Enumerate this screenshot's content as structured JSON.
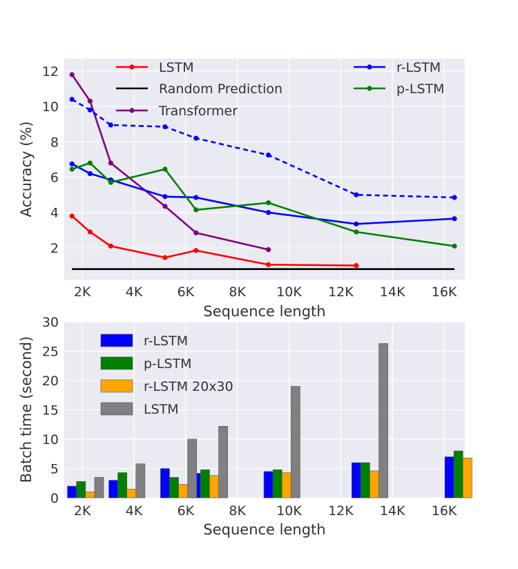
{
  "chart_data": [
    {
      "type": "line",
      "xlabel": "Sequence length",
      "ylabel": "Accuracy (%)",
      "xlim": [
        1300,
        16800
      ],
      "ylim": [
        0.2,
        12.7
      ],
      "xticks": [
        {
          "value": 2000,
          "label": "2K"
        },
        {
          "value": 4000,
          "label": "4K"
        },
        {
          "value": 6000,
          "label": "6K"
        },
        {
          "value": 8000,
          "label": "8K"
        },
        {
          "value": 10000,
          "label": "10K"
        },
        {
          "value": 12000,
          "label": "12K"
        },
        {
          "value": 14000,
          "label": "14K"
        },
        {
          "value": 16000,
          "label": "16K"
        }
      ],
      "yticks": [
        {
          "value": 2,
          "label": "2"
        },
        {
          "value": 4,
          "label": "4"
        },
        {
          "value": 6,
          "label": "6"
        },
        {
          "value": 8,
          "label": "8"
        },
        {
          "value": 10,
          "label": "10"
        },
        {
          "value": 12,
          "label": "12"
        }
      ],
      "grid": true,
      "legend_placement": "top",
      "series": [
        {
          "name": "LSTM",
          "color": "#ff0000",
          "style": "solid",
          "marker": true,
          "x": [
            1600,
            2300,
            3100,
            5200,
            6400,
            9200,
            12600
          ],
          "y": [
            3.8,
            2.9,
            2.1,
            1.45,
            1.85,
            1.05,
            1.0
          ]
        },
        {
          "name": "Random Prediction",
          "color": "#000000",
          "style": "solid",
          "marker": false,
          "x": [
            1600,
            16400
          ],
          "y": [
            0.8,
            0.8
          ]
        },
        {
          "name": "Transformer",
          "color": "#800080",
          "style": "solid",
          "marker": true,
          "x": [
            1600,
            2300,
            3100,
            5200,
            6400,
            9200
          ],
          "y": [
            11.8,
            10.3,
            6.8,
            4.35,
            2.85,
            1.9
          ]
        },
        {
          "name": "r-LSTM",
          "color": "#0000ff",
          "style": "solid",
          "marker": true,
          "x": [
            1600,
            2300,
            3100,
            5200,
            6400,
            9200,
            12600,
            16400
          ],
          "y": [
            6.75,
            6.2,
            5.85,
            4.9,
            4.85,
            4.0,
            3.35,
            3.65
          ]
        },
        {
          "name": "",
          "color": "#0000ff",
          "style": "dashed",
          "marker": true,
          "x": [
            1600,
            2300,
            3100,
            5200,
            6400,
            9200,
            12600,
            16400
          ],
          "y": [
            10.4,
            9.8,
            8.95,
            8.85,
            8.2,
            7.25,
            5.0,
            4.85
          ]
        },
        {
          "name": "p-LSTM",
          "color": "#008000",
          "style": "solid",
          "marker": true,
          "x": [
            1600,
            2300,
            3100,
            5200,
            6400,
            9200,
            12600,
            16400
          ],
          "y": [
            6.45,
            6.8,
            5.7,
            6.45,
            4.15,
            4.55,
            2.9,
            2.1
          ]
        }
      ]
    },
    {
      "type": "bar",
      "xlabel": "Sequence length",
      "ylabel": "Batch time (second)",
      "xlim": [
        1300,
        16800
      ],
      "ylim": [
        0,
        30
      ],
      "xticks": [
        {
          "value": 2000,
          "label": "2K"
        },
        {
          "value": 4000,
          "label": "4K"
        },
        {
          "value": 6000,
          "label": "6K"
        },
        {
          "value": 8000,
          "label": "8K"
        },
        {
          "value": 10000,
          "label": "10K"
        },
        {
          "value": 12000,
          "label": "12K"
        },
        {
          "value": 14000,
          "label": "14K"
        },
        {
          "value": 16000,
          "label": "16K"
        }
      ],
      "yticks": [
        {
          "value": 0,
          "label": "0"
        },
        {
          "value": 5,
          "label": "5"
        },
        {
          "value": 10,
          "label": "10"
        },
        {
          "value": 15,
          "label": "15"
        },
        {
          "value": 20,
          "label": "20"
        },
        {
          "value": 25,
          "label": "25"
        },
        {
          "value": 30,
          "label": "30"
        }
      ],
      "grid": true,
      "legend_placement": "top-left",
      "series": [
        {
          "name": "r-LSTM",
          "color": "#0000ff",
          "x": [
            1600,
            3200,
            5200,
            6400,
            9200,
            12600,
            16200
          ],
          "values": [
            2.0,
            3.0,
            5.0,
            4.2,
            4.5,
            6.0,
            7.0
          ]
        },
        {
          "name": "p-LSTM",
          "color": "#008000",
          "x": [
            1950,
            3550,
            5550,
            6750,
            9550,
            12950,
            16550
          ],
          "values": [
            2.8,
            4.3,
            3.5,
            4.8,
            4.8,
            6.0,
            8.0
          ]
        },
        {
          "name": "r-LSTM 20x30",
          "color": "#ffa500",
          "x": [
            2300,
            3900,
            5900,
            7100,
            9900,
            13300,
            16900
          ],
          "values": [
            1.0,
            1.5,
            2.3,
            3.8,
            4.3,
            4.6,
            6.8
          ]
        },
        {
          "name": "LSTM",
          "color": "#808080",
          "x": [
            2650,
            4250,
            6250,
            7450,
            10250,
            13650
          ],
          "values": [
            3.5,
            5.8,
            10.0,
            12.2,
            19.0,
            26.3
          ]
        }
      ]
    }
  ]
}
